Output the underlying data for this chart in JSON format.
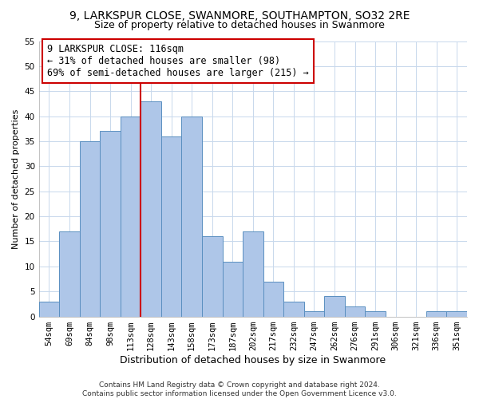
{
  "title1": "9, LARKSPUR CLOSE, SWANMORE, SOUTHAMPTON, SO32 2RE",
  "title2": "Size of property relative to detached houses in Swanmore",
  "xlabel": "Distribution of detached houses by size in Swanmore",
  "ylabel": "Number of detached properties",
  "footnote": "Contains HM Land Registry data © Crown copyright and database right 2024.\nContains public sector information licensed under the Open Government Licence v3.0.",
  "bar_labels": [
    "54sqm",
    "69sqm",
    "84sqm",
    "98sqm",
    "113sqm",
    "128sqm",
    "143sqm",
    "158sqm",
    "173sqm",
    "187sqm",
    "202sqm",
    "217sqm",
    "232sqm",
    "247sqm",
    "262sqm",
    "276sqm",
    "291sqm",
    "306sqm",
    "321sqm",
    "336sqm",
    "351sqm"
  ],
  "bar_values": [
    3,
    17,
    35,
    37,
    40,
    43,
    36,
    40,
    16,
    11,
    17,
    7,
    3,
    1,
    4,
    2,
    1,
    0,
    0,
    1,
    1
  ],
  "bar_color": "#aec6e8",
  "bar_edge_color": "#5a8fc0",
  "vline_x": 4.5,
  "vline_color": "#cc0000",
  "annotation_text": "9 LARKSPUR CLOSE: 116sqm\n← 31% of detached houses are smaller (98)\n69% of semi-detached houses are larger (215) →",
  "annotation_box_color": "#ffffff",
  "annotation_box_edge": "#cc0000",
  "ylim": [
    0,
    55
  ],
  "yticks": [
    0,
    5,
    10,
    15,
    20,
    25,
    30,
    35,
    40,
    45,
    50,
    55
  ],
  "title1_fontsize": 10,
  "title2_fontsize": 9,
  "xlabel_fontsize": 9,
  "ylabel_fontsize": 8,
  "tick_fontsize": 7.5,
  "annotation_fontsize": 8.5,
  "footnote_fontsize": 6.5
}
